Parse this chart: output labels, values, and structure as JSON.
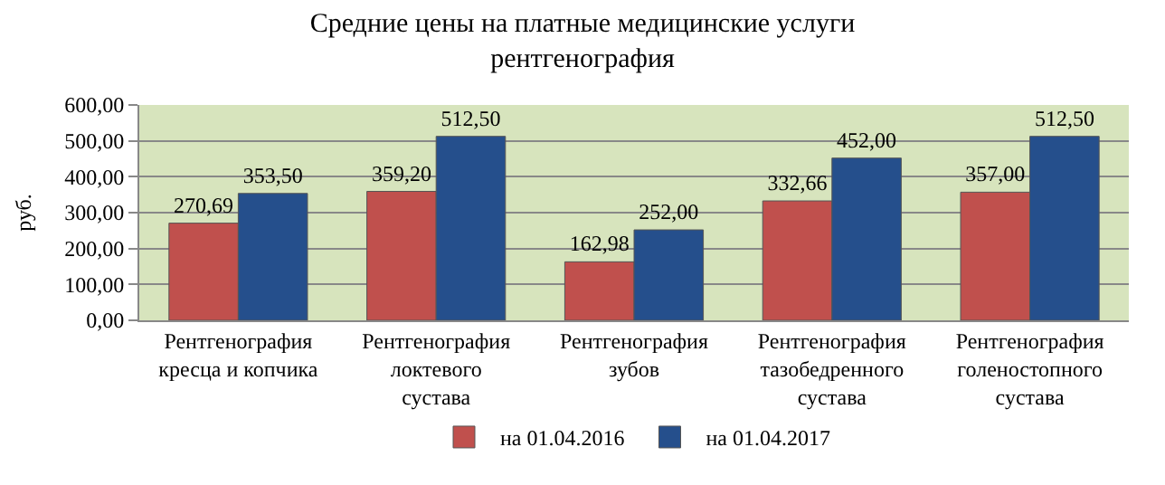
{
  "chart_data": {
    "type": "bar",
    "title": "Средние цены на платные медицинские услуги\nрентгенография",
    "ylabel": "руб.",
    "categories": [
      "Рентгенография кресца и копчика",
      "Рентгенография локтевого сустава",
      "Рентгенография зубов",
      "Рентгенография тазобедренного сустава",
      "Рентгенография голеностопного сустава"
    ],
    "series": [
      {
        "name": "на 01.04.2016",
        "color": "#c0504d",
        "values": [
          270.69,
          359.2,
          162.98,
          332.66,
          357.0
        ],
        "value_labels": [
          "270,69",
          "359,20",
          "162,98",
          "332,66",
          "357,00"
        ]
      },
      {
        "name": "на 01.04.2017",
        "color": "#254f8c",
        "values": [
          353.5,
          512.5,
          252.0,
          452.0,
          512.5
        ],
        "value_labels": [
          "353,50",
          "512,50",
          "252,00",
          "452,00",
          "512,50"
        ]
      }
    ],
    "ylim": [
      0,
      600
    ],
    "yticks": [
      {
        "value": 0,
        "label": "0,00"
      },
      {
        "value": 100,
        "label": "100,00"
      },
      {
        "value": 200,
        "label": "200,00"
      },
      {
        "value": 300,
        "label": "300,00"
      },
      {
        "value": 400,
        "label": "400,00"
      },
      {
        "value": 500,
        "label": "500,00"
      },
      {
        "value": 600,
        "label": "600,00"
      }
    ],
    "grid": "y",
    "legend": "bottom"
  }
}
